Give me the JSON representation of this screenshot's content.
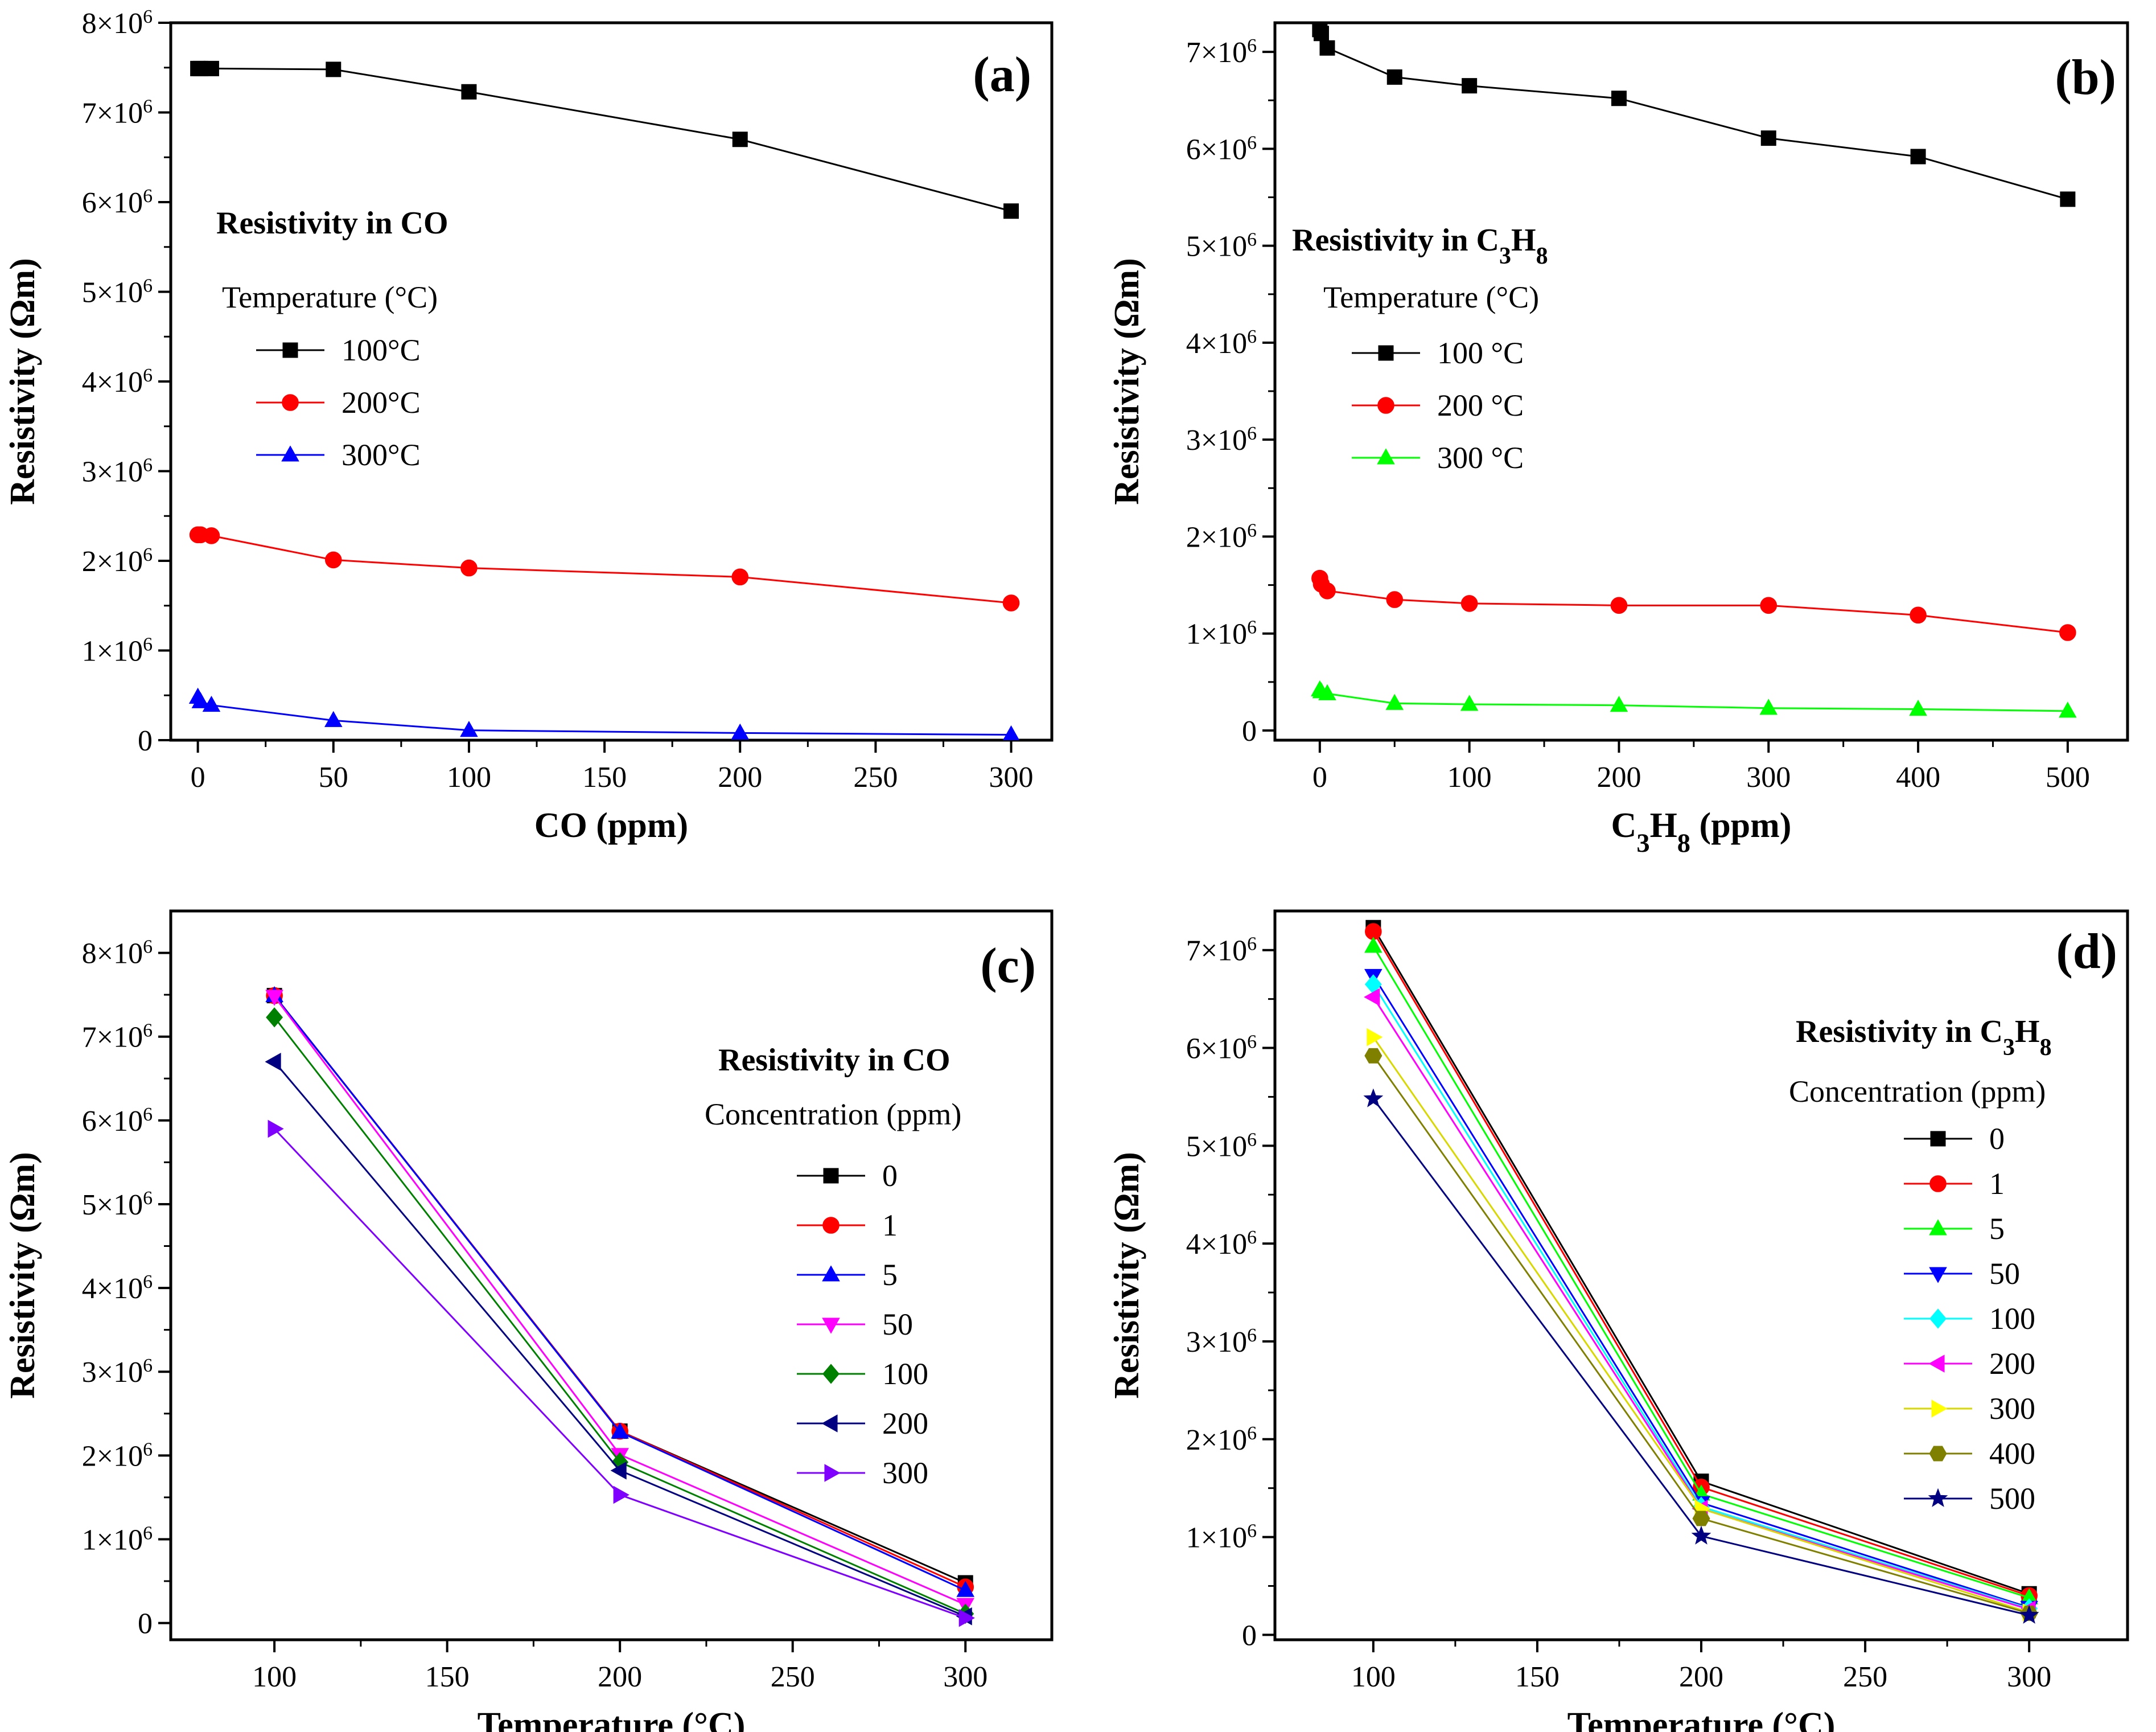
{
  "chart_data": [
    {
      "id": "a",
      "type": "line",
      "panel_label": "(a)",
      "title": "Resistivity in CO",
      "legend_title": "Temperature (°C)",
      "xlabel": "CO (ppm)",
      "ylabel": "Resistivity (Ωm)",
      "xlim": [
        -10,
        315
      ],
      "ylim": [
        0,
        8000000
      ],
      "xticks": [
        0,
        50,
        100,
        150,
        200,
        250,
        300
      ],
      "yticks": [
        0,
        1000000,
        2000000,
        3000000,
        4000000,
        5000000,
        6000000,
        7000000,
        8000000
      ],
      "series": [
        {
          "name": "100°C",
          "color": "#000000",
          "marker": "square",
          "x": [
            0,
            1,
            5,
            50,
            100,
            200,
            300
          ],
          "y": [
            7490000,
            7490000,
            7490000,
            7480000,
            7230000,
            6700000,
            5900000
          ]
        },
        {
          "name": "200°C",
          "color": "#ff0000",
          "marker": "circle",
          "x": [
            0,
            1,
            5,
            50,
            100,
            200,
            300
          ],
          "y": [
            2290000,
            2290000,
            2280000,
            2010000,
            1920000,
            1820000,
            1530000
          ]
        },
        {
          "name": "300°C",
          "color": "#0000ff",
          "marker": "triangle-up",
          "x": [
            0,
            1,
            5,
            50,
            100,
            200,
            300
          ],
          "y": [
            480000,
            430000,
            390000,
            220000,
            110000,
            80000,
            60000
          ]
        }
      ]
    },
    {
      "id": "b",
      "type": "line",
      "panel_label": "(b)",
      "title": "Resistivity in C3H8",
      "legend_title": "Temperature (°C)",
      "xlabel": "C3H8 (ppm)",
      "ylabel": "Resistivity (Ωm)",
      "xlim": [
        -30,
        540
      ],
      "ylim": [
        -100000,
        7300000
      ],
      "xticks": [
        0,
        100,
        200,
        300,
        400,
        500
      ],
      "yticks": [
        0,
        1000000,
        2000000,
        3000000,
        4000000,
        5000000,
        6000000,
        7000000
      ],
      "series": [
        {
          "name": "100 °C",
          "color": "#000000",
          "marker": "square",
          "x": [
            0,
            1,
            5,
            50,
            100,
            200,
            300,
            400,
            500
          ],
          "y": [
            7230000,
            7190000,
            7040000,
            6740000,
            6650000,
            6520000,
            6110000,
            5920000,
            5480000
          ]
        },
        {
          "name": "200 °C",
          "color": "#ff0000",
          "marker": "circle",
          "x": [
            0,
            1,
            5,
            50,
            100,
            200,
            300,
            400,
            500
          ],
          "y": [
            1570000,
            1510000,
            1440000,
            1350000,
            1310000,
            1290000,
            1290000,
            1190000,
            1010000
          ]
        },
        {
          "name": "300 °C",
          "color": "#00ff00",
          "marker": "triangle-up",
          "x": [
            0,
            1,
            5,
            50,
            100,
            200,
            300,
            400,
            500
          ],
          "y": [
            420000,
            400000,
            380000,
            280000,
            270000,
            260000,
            230000,
            220000,
            200000
          ]
        }
      ]
    },
    {
      "id": "c",
      "type": "line",
      "panel_label": "(c)",
      "title": "Resistivity in CO",
      "legend_title": "Concentration (ppm)",
      "xlabel": "Temperature (°C)",
      "ylabel": "Resistivity (Ωm)",
      "xlim": [
        70,
        325
      ],
      "ylim": [
        -200000,
        8500000
      ],
      "xticks": [
        100,
        150,
        200,
        250,
        300
      ],
      "yticks": [
        0,
        1000000,
        2000000,
        3000000,
        4000000,
        5000000,
        6000000,
        7000000,
        8000000
      ],
      "x": [
        100,
        200,
        300
      ],
      "series": [
        {
          "name": "0",
          "color": "#000000",
          "marker": "square",
          "values": [
            7490000,
            2290000,
            480000
          ]
        },
        {
          "name": "1",
          "color": "#ff0000",
          "marker": "circle",
          "values": [
            7490000,
            2290000,
            430000
          ]
        },
        {
          "name": "5",
          "color": "#0000ff",
          "marker": "triangle-up",
          "values": [
            7490000,
            2280000,
            390000
          ]
        },
        {
          "name": "50",
          "color": "#ff00ff",
          "marker": "triangle-down",
          "values": [
            7480000,
            2010000,
            220000
          ]
        },
        {
          "name": "100",
          "color": "#008000",
          "marker": "diamond",
          "values": [
            7230000,
            1920000,
            110000
          ]
        },
        {
          "name": "200",
          "color": "#000080",
          "marker": "triangle-left",
          "values": [
            6700000,
            1820000,
            80000
          ]
        },
        {
          "name": "300",
          "color": "#8000ff",
          "marker": "triangle-right",
          "values": [
            5900000,
            1530000,
            60000
          ]
        }
      ]
    },
    {
      "id": "d",
      "type": "line",
      "panel_label": "(d)",
      "title": "Resistivity in C3H8",
      "legend_title": "Concentration (ppm)",
      "xlabel": "Temperature (°C)",
      "ylabel": "Resistivity (Ωm)",
      "xlim": [
        70,
        330
      ],
      "ylim": [
        -50000,
        7400000
      ],
      "xticks": [
        100,
        150,
        200,
        250,
        300
      ],
      "yticks": [
        0,
        1000000,
        2000000,
        3000000,
        4000000,
        5000000,
        6000000,
        7000000
      ],
      "x": [
        100,
        200,
        300
      ],
      "series": [
        {
          "name": "0",
          "color": "#000000",
          "marker": "square",
          "values": [
            7230000,
            1570000,
            420000
          ]
        },
        {
          "name": "1",
          "color": "#ff0000",
          "marker": "circle",
          "values": [
            7190000,
            1510000,
            400000
          ]
        },
        {
          "name": "5",
          "color": "#00ff00",
          "marker": "triangle-up",
          "values": [
            7040000,
            1440000,
            380000
          ]
        },
        {
          "name": "50",
          "color": "#0000ff",
          "marker": "triangle-down",
          "values": [
            6740000,
            1350000,
            280000
          ]
        },
        {
          "name": "100",
          "color": "#00ffff",
          "marker": "diamond",
          "values": [
            6650000,
            1310000,
            270000
          ]
        },
        {
          "name": "200",
          "color": "#ff00ff",
          "marker": "triangle-left",
          "values": [
            6520000,
            1290000,
            260000
          ]
        },
        {
          "name": "300",
          "color": "#ffff00",
          "marker": "triangle-right",
          "values": [
            6110000,
            1290000,
            230000
          ]
        },
        {
          "name": "400",
          "color": "#808000",
          "marker": "hexagon",
          "values": [
            5920000,
            1190000,
            220000
          ]
        },
        {
          "name": "500",
          "color": "#000080",
          "marker": "star",
          "values": [
            5480000,
            1010000,
            200000
          ]
        }
      ]
    }
  ]
}
